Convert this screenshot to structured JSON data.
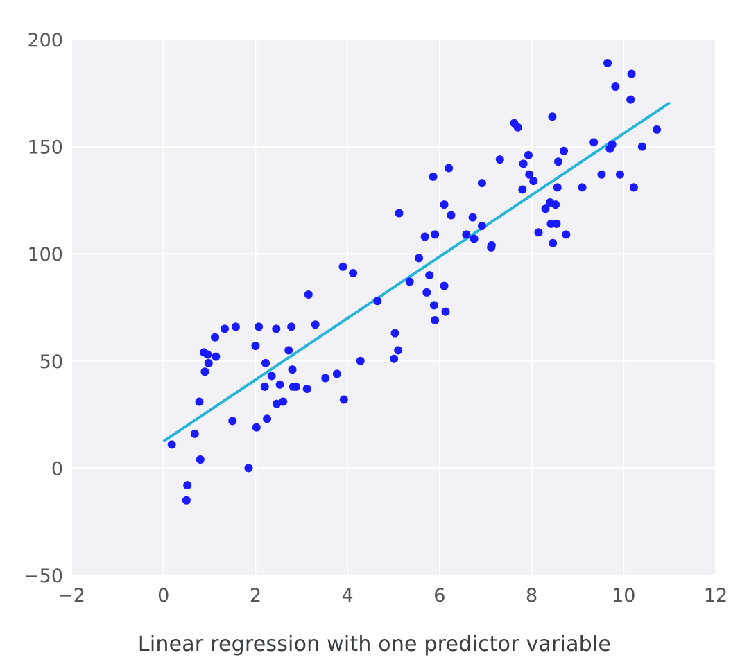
{
  "chart_data": {
    "type": "scatter",
    "title": "",
    "xlabel": "",
    "ylabel": "",
    "xlim": [
      -2,
      12
    ],
    "ylim": [
      -50,
      200
    ],
    "x_ticks": [
      -2,
      0,
      2,
      4,
      6,
      8,
      10,
      12
    ],
    "y_ticks": [
      -50,
      0,
      50,
      100,
      150,
      200
    ],
    "x_tick_labels": [
      "−2",
      "0",
      "2",
      "4",
      "6",
      "8",
      "10",
      "12"
    ],
    "y_tick_labels": [
      "−50",
      "0",
      "50",
      "100",
      "150",
      "200"
    ],
    "grid": true,
    "background_color": "#f1f1f6",
    "grid_color": "#ffffff",
    "point_color": "#1a1aff",
    "line_color": "#26b4d8",
    "points": [
      [
        0.18,
        11
      ],
      [
        0.52,
        -8
      ],
      [
        0.5,
        -15
      ],
      [
        0.68,
        16
      ],
      [
        0.8,
        4
      ],
      [
        0.78,
        31
      ],
      [
        0.88,
        54
      ],
      [
        0.9,
        45
      ],
      [
        0.96,
        53
      ],
      [
        0.98,
        49
      ],
      [
        1.12,
        61
      ],
      [
        1.14,
        52
      ],
      [
        1.33,
        65
      ],
      [
        1.5,
        22
      ],
      [
        1.57,
        66
      ],
      [
        1.85,
        0
      ],
      [
        2.0,
        57
      ],
      [
        2.02,
        19
      ],
      [
        2.07,
        66
      ],
      [
        2.2,
        38
      ],
      [
        2.22,
        49
      ],
      [
        2.25,
        23
      ],
      [
        2.35,
        43
      ],
      [
        2.45,
        65
      ],
      [
        2.46,
        30
      ],
      [
        2.53,
        39
      ],
      [
        2.6,
        31
      ],
      [
        2.72,
        55
      ],
      [
        2.78,
        66
      ],
      [
        2.8,
        46
      ],
      [
        2.82,
        38
      ],
      [
        2.88,
        38
      ],
      [
        3.12,
        37
      ],
      [
        3.15,
        81
      ],
      [
        3.3,
        67
      ],
      [
        3.52,
        42
      ],
      [
        3.77,
        44
      ],
      [
        3.9,
        94
      ],
      [
        3.92,
        32
      ],
      [
        4.12,
        91
      ],
      [
        4.28,
        50
      ],
      [
        4.65,
        78
      ],
      [
        5.01,
        51
      ],
      [
        5.03,
        63
      ],
      [
        5.1,
        55
      ],
      [
        5.12,
        119
      ],
      [
        5.35,
        87
      ],
      [
        5.55,
        98
      ],
      [
        5.68,
        108
      ],
      [
        5.72,
        82
      ],
      [
        5.78,
        90
      ],
      [
        5.86,
        136
      ],
      [
        5.88,
        76
      ],
      [
        5.9,
        69
      ],
      [
        5.9,
        109
      ],
      [
        6.1,
        123
      ],
      [
        6.1,
        85
      ],
      [
        6.13,
        73
      ],
      [
        6.2,
        140
      ],
      [
        6.25,
        118
      ],
      [
        6.58,
        109
      ],
      [
        6.72,
        117
      ],
      [
        6.75,
        107
      ],
      [
        6.92,
        113
      ],
      [
        6.92,
        133
      ],
      [
        7.12,
        103
      ],
      [
        7.13,
        104
      ],
      [
        7.31,
        144
      ],
      [
        7.62,
        161
      ],
      [
        7.7,
        159
      ],
      [
        7.8,
        130
      ],
      [
        7.82,
        142
      ],
      [
        7.93,
        146
      ],
      [
        7.95,
        137
      ],
      [
        8.04,
        134
      ],
      [
        8.15,
        110
      ],
      [
        8.3,
        121
      ],
      [
        8.4,
        124
      ],
      [
        8.42,
        114
      ],
      [
        8.45,
        164
      ],
      [
        8.46,
        105
      ],
      [
        8.52,
        123
      ],
      [
        8.54,
        114
      ],
      [
        8.56,
        131
      ],
      [
        8.58,
        143
      ],
      [
        8.7,
        148
      ],
      [
        8.75,
        109
      ],
      [
        9.1,
        131
      ],
      [
        9.35,
        152
      ],
      [
        9.52,
        137
      ],
      [
        9.65,
        189
      ],
      [
        9.7,
        149
      ],
      [
        9.75,
        151
      ],
      [
        9.82,
        178
      ],
      [
        9.92,
        137
      ],
      [
        10.15,
        172
      ],
      [
        10.17,
        184
      ],
      [
        10.22,
        131
      ],
      [
        10.4,
        150
      ],
      [
        10.72,
        158
      ]
    ],
    "regression_line": {
      "x": [
        0,
        11
      ],
      "y": [
        12.5,
        170.5
      ]
    }
  },
  "caption": "Linear regression with one predictor variable"
}
